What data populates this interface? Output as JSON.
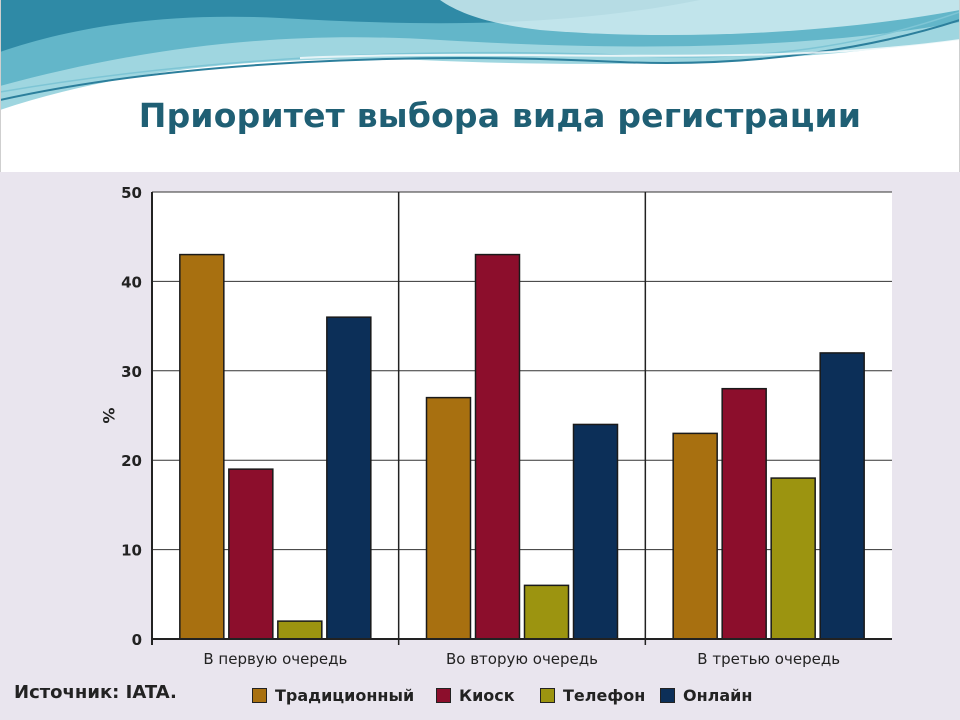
{
  "title": "Приоритет выбора вида регистрации",
  "source": "Источник: IATA.",
  "chart_data": {
    "type": "bar",
    "title": "",
    "xlabel": "",
    "ylabel": "%",
    "ylim": [
      0,
      50
    ],
    "yticks": [
      0,
      10,
      20,
      30,
      40,
      50
    ],
    "grid": true,
    "legend_position": "bottom",
    "categories": [
      "В первую очередь",
      "Во вторую очередь",
      "В третью очередь"
    ],
    "series": [
      {
        "name": "Традиционный",
        "color": "#a87010",
        "values": [
          43,
          27,
          23
        ]
      },
      {
        "name": "Киоск",
        "color": "#8c0e2c",
        "values": [
          19,
          43,
          28
        ]
      },
      {
        "name": "Телефон",
        "color": "#9c9410",
        "values": [
          2,
          6,
          18
        ]
      },
      {
        "name": "Онлайн",
        "color": "#0c2f58",
        "values": [
          36,
          24,
          32
        ]
      }
    ]
  }
}
